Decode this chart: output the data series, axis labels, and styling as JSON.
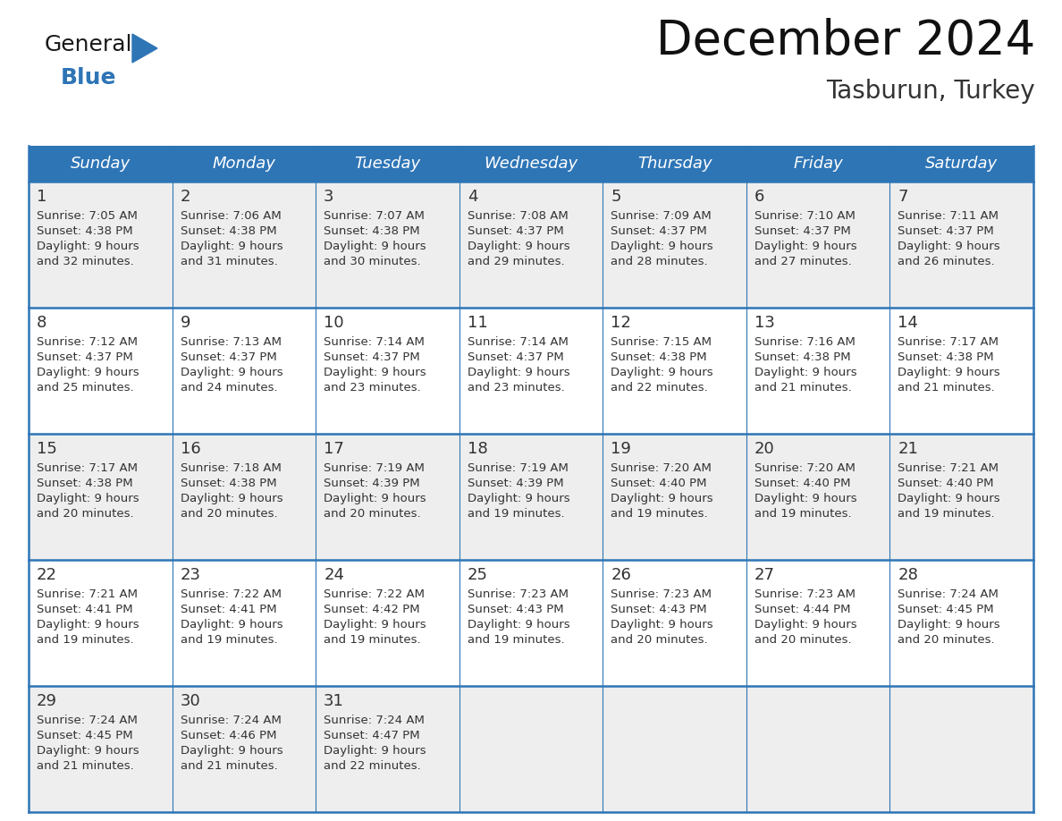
{
  "title": "December 2024",
  "subtitle": "Tasburun, Turkey",
  "days_of_week": [
    "Sunday",
    "Monday",
    "Tuesday",
    "Wednesday",
    "Thursday",
    "Friday",
    "Saturday"
  ],
  "header_bg": "#2E75B6",
  "header_text": "#FFFFFF",
  "cell_bg_odd": "#EEEEEE",
  "cell_bg_even": "#FFFFFF",
  "cell_border": "#2E75B6",
  "day_num_color": "#333333",
  "cell_text_color": "#333333",
  "calendar_data": [
    [
      {
        "day": 1,
        "sunrise": "7:05 AM",
        "sunset": "4:38 PM",
        "daylight": "9 hours and 32 minutes."
      },
      {
        "day": 2,
        "sunrise": "7:06 AM",
        "sunset": "4:38 PM",
        "daylight": "9 hours and 31 minutes."
      },
      {
        "day": 3,
        "sunrise": "7:07 AM",
        "sunset": "4:38 PM",
        "daylight": "9 hours and 30 minutes."
      },
      {
        "day": 4,
        "sunrise": "7:08 AM",
        "sunset": "4:37 PM",
        "daylight": "9 hours and 29 minutes."
      },
      {
        "day": 5,
        "sunrise": "7:09 AM",
        "sunset": "4:37 PM",
        "daylight": "9 hours and 28 minutes."
      },
      {
        "day": 6,
        "sunrise": "7:10 AM",
        "sunset": "4:37 PM",
        "daylight": "9 hours and 27 minutes."
      },
      {
        "day": 7,
        "sunrise": "7:11 AM",
        "sunset": "4:37 PM",
        "daylight": "9 hours and 26 minutes."
      }
    ],
    [
      {
        "day": 8,
        "sunrise": "7:12 AM",
        "sunset": "4:37 PM",
        "daylight": "9 hours and 25 minutes."
      },
      {
        "day": 9,
        "sunrise": "7:13 AM",
        "sunset": "4:37 PM",
        "daylight": "9 hours and 24 minutes."
      },
      {
        "day": 10,
        "sunrise": "7:14 AM",
        "sunset": "4:37 PM",
        "daylight": "9 hours and 23 minutes."
      },
      {
        "day": 11,
        "sunrise": "7:14 AM",
        "sunset": "4:37 PM",
        "daylight": "9 hours and 23 minutes."
      },
      {
        "day": 12,
        "sunrise": "7:15 AM",
        "sunset": "4:38 PM",
        "daylight": "9 hours and 22 minutes."
      },
      {
        "day": 13,
        "sunrise": "7:16 AM",
        "sunset": "4:38 PM",
        "daylight": "9 hours and 21 minutes."
      },
      {
        "day": 14,
        "sunrise": "7:17 AM",
        "sunset": "4:38 PM",
        "daylight": "9 hours and 21 minutes."
      }
    ],
    [
      {
        "day": 15,
        "sunrise": "7:17 AM",
        "sunset": "4:38 PM",
        "daylight": "9 hours and 20 minutes."
      },
      {
        "day": 16,
        "sunrise": "7:18 AM",
        "sunset": "4:38 PM",
        "daylight": "9 hours and 20 minutes."
      },
      {
        "day": 17,
        "sunrise": "7:19 AM",
        "sunset": "4:39 PM",
        "daylight": "9 hours and 20 minutes."
      },
      {
        "day": 18,
        "sunrise": "7:19 AM",
        "sunset": "4:39 PM",
        "daylight": "9 hours and 19 minutes."
      },
      {
        "day": 19,
        "sunrise": "7:20 AM",
        "sunset": "4:40 PM",
        "daylight": "9 hours and 19 minutes."
      },
      {
        "day": 20,
        "sunrise": "7:20 AM",
        "sunset": "4:40 PM",
        "daylight": "9 hours and 19 minutes."
      },
      {
        "day": 21,
        "sunrise": "7:21 AM",
        "sunset": "4:40 PM",
        "daylight": "9 hours and 19 minutes."
      }
    ],
    [
      {
        "day": 22,
        "sunrise": "7:21 AM",
        "sunset": "4:41 PM",
        "daylight": "9 hours and 19 minutes."
      },
      {
        "day": 23,
        "sunrise": "7:22 AM",
        "sunset": "4:41 PM",
        "daylight": "9 hours and 19 minutes."
      },
      {
        "day": 24,
        "sunrise": "7:22 AM",
        "sunset": "4:42 PM",
        "daylight": "9 hours and 19 minutes."
      },
      {
        "day": 25,
        "sunrise": "7:23 AM",
        "sunset": "4:43 PM",
        "daylight": "9 hours and 19 minutes."
      },
      {
        "day": 26,
        "sunrise": "7:23 AM",
        "sunset": "4:43 PM",
        "daylight": "9 hours and 20 minutes."
      },
      {
        "day": 27,
        "sunrise": "7:23 AM",
        "sunset": "4:44 PM",
        "daylight": "9 hours and 20 minutes."
      },
      {
        "day": 28,
        "sunrise": "7:24 AM",
        "sunset": "4:45 PM",
        "daylight": "9 hours and 20 minutes."
      }
    ],
    [
      {
        "day": 29,
        "sunrise": "7:24 AM",
        "sunset": "4:45 PM",
        "daylight": "9 hours and 21 minutes."
      },
      {
        "day": 30,
        "sunrise": "7:24 AM",
        "sunset": "4:46 PM",
        "daylight": "9 hours and 21 minutes."
      },
      {
        "day": 31,
        "sunrise": "7:24 AM",
        "sunset": "4:47 PM",
        "daylight": "9 hours and 22 minutes."
      },
      null,
      null,
      null,
      null
    ]
  ],
  "logo_text_general": "General",
  "logo_text_blue": "Blue",
  "logo_blue": "#2E75B6",
  "logo_black": "#1a1a1a",
  "fig_width": 11.88,
  "fig_height": 9.18,
  "dpi": 100
}
